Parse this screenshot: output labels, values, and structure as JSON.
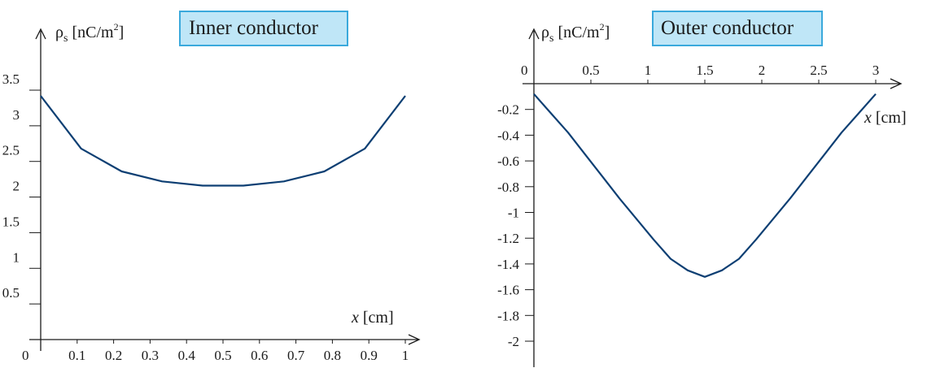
{
  "chart_data": [
    {
      "type": "line",
      "ylabel_symbol": "ρ",
      "ylabel_sub": "s",
      "ylabel_unit_pre": "[nC/m",
      "ylabel_unit_sup": "2",
      "ylabel_unit_post": "]",
      "xlabel_var": "x",
      "xlabel_unit": " [cm]",
      "title": "Inner conductor",
      "origin_label": "0",
      "xlim": [
        0,
        1
      ],
      "ylim": [
        0,
        3.5
      ],
      "xticks": [
        "0.1",
        "0.2",
        "0.3",
        "0.4",
        "0.5",
        "0.6",
        "0.7",
        "0.8",
        "0.9",
        "1"
      ],
      "yticks": [
        "0.5",
        "1",
        "1.5",
        "2",
        "2.5",
        "3",
        "3.5"
      ],
      "series": [
        {
          "x": [
            0,
            0.111,
            0.222,
            0.333,
            0.444,
            0.556,
            0.667,
            0.778,
            0.889,
            1.0
          ],
          "y": [
            3.42,
            2.68,
            2.36,
            2.22,
            2.16,
            2.16,
            2.22,
            2.36,
            2.68,
            3.42
          ]
        }
      ],
      "color": "#0d3f73"
    },
    {
      "type": "line",
      "ylabel_symbol": "ρ",
      "ylabel_sub": "s",
      "ylabel_unit_pre": "[nC/m",
      "ylabel_unit_sup": "2",
      "ylabel_unit_post": "]",
      "xlabel_var": "x",
      "xlabel_unit": " [cm]",
      "title": "Outer conductor",
      "origin_label": "0",
      "xlim": [
        0,
        3
      ],
      "ylim": [
        -2,
        0
      ],
      "xticks": [
        "0.5",
        "1",
        "1.5",
        "2",
        "2.5",
        "3"
      ],
      "yticks": [
        "-0.2",
        "-0.4",
        "-0.6",
        "-0.8",
        "-1",
        "-1.2",
        "-1.4",
        "-1.6",
        "-1.8",
        "-2"
      ],
      "series": [
        {
          "x": [
            0,
            0.15,
            0.3,
            0.45,
            0.6,
            0.75,
            0.9,
            1.05,
            1.2,
            1.35,
            1.5,
            1.65,
            1.8,
            1.95,
            2.1,
            2.25,
            2.4,
            2.55,
            2.7,
            2.85,
            3.0
          ],
          "y": [
            -0.08,
            -0.23,
            -0.38,
            -0.55,
            -0.72,
            -0.89,
            -1.05,
            -1.21,
            -1.36,
            -1.45,
            -1.5,
            -1.45,
            -1.36,
            -1.21,
            -1.05,
            -0.89,
            -0.72,
            -0.55,
            -0.38,
            -0.23,
            -0.08
          ]
        }
      ],
      "color": "#0d3f73"
    }
  ]
}
